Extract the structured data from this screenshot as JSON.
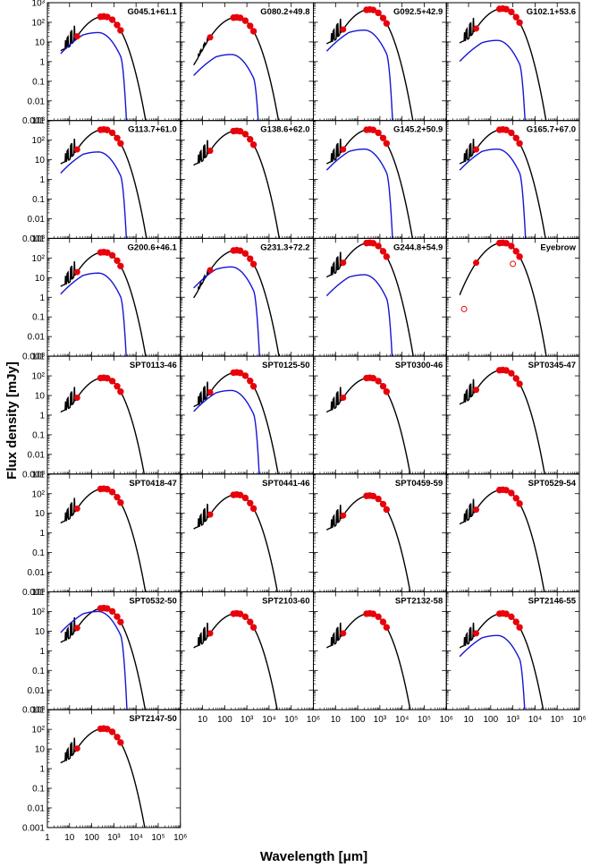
{
  "chart_data": {
    "type": "line",
    "xlabel": "Wavelength [μm]",
    "ylabel": "Flux density [mJy]",
    "x_scale": "log",
    "y_scale": "log",
    "xlim": [
      1,
      1000000
    ],
    "ylim": [
      0.001,
      1000
    ],
    "x_ticks": [
      "1",
      "10",
      "100",
      "10³",
      "10⁴",
      "10⁵",
      "10⁶"
    ],
    "y_ticks": [
      "0.001",
      "0.01",
      "0.1",
      "1",
      "10",
      "10²",
      "10³"
    ],
    "grid": false,
    "panels": [
      {
        "label": "G045.1+61.1",
        "peak": 200,
        "lensed": true,
        "blue_peak": 30,
        "hot": 1.0
      },
      {
        "label": "G080.2+49.8",
        "peak": 180,
        "lensed": true,
        "blue_peak": 2.3,
        "hot": 0.1
      },
      {
        "label": "G092.5+42.9",
        "peak": 450,
        "lensed": true,
        "blue_peak": 40,
        "hot": 1.0
      },
      {
        "label": "G102.1+53.6",
        "peak": 500,
        "lensed": true,
        "blue_peak": 12,
        "hot": 1.0
      },
      {
        "label": "G113.7+61.0",
        "peak": 350,
        "lensed": true,
        "blue_peak": 25,
        "hot": 1.0
      },
      {
        "label": "G138.6+62.0",
        "peak": 300,
        "lensed": false,
        "hot": 1.0
      },
      {
        "label": "G145.2+50.9",
        "peak": 350,
        "lensed": true,
        "blue_peak": 35,
        "hot": 1.0
      },
      {
        "label": "G165.7+67.0",
        "peak": 350,
        "lensed": true,
        "blue_peak": 35,
        "hot": 1.0
      },
      {
        "label": "G200.6+46.1",
        "peak": 200,
        "lensed": true,
        "blue_peak": 17,
        "hot": 1.0
      },
      {
        "label": "G231.3+72.2",
        "peak": 250,
        "lensed": true,
        "blue_peak": 35,
        "hot": 0.1
      },
      {
        "label": "G244.8+54.9",
        "peak": 600,
        "lensed": true,
        "blue_peak": 14,
        "hot": 1.0
      },
      {
        "label": "Eyebrow",
        "peak": 600,
        "lensed": false,
        "hot": 0.0,
        "open_circles": true
      },
      {
        "label": "SPT0113-46",
        "peak": 80,
        "lensed": false,
        "hot": 1.0
      },
      {
        "label": "SPT0125-50",
        "peak": 150,
        "lensed": true,
        "blue_peak": 18,
        "hot": 1.0
      },
      {
        "label": "SPT0300-46",
        "peak": 80,
        "lensed": false,
        "hot": 1.0
      },
      {
        "label": "SPT0345-47",
        "peak": 200,
        "lensed": false,
        "hot": 1.0
      },
      {
        "label": "SPT0418-47",
        "peak": 180,
        "lensed": false,
        "hot": 1.0
      },
      {
        "label": "SPT0441-46",
        "peak": 90,
        "lensed": false,
        "hot": 1.0
      },
      {
        "label": "SPT0459-59",
        "peak": 80,
        "lensed": false,
        "hot": 1.0
      },
      {
        "label": "SPT0529-54",
        "peak": 160,
        "lensed": false,
        "hot": 1.0
      },
      {
        "label": "SPT0532-50",
        "peak": 150,
        "lensed": true,
        "blue_peak": 100,
        "hot": 1.0
      },
      {
        "label": "SPT2103-60",
        "peak": 80,
        "lensed": false,
        "hot": 1.0
      },
      {
        "label": "SPT2132-58",
        "peak": 80,
        "lensed": false,
        "hot": 1.0
      },
      {
        "label": "SPT2146-55",
        "peak": 80,
        "lensed": true,
        "blue_peak": 6,
        "hot": 1.0
      },
      {
        "label": "SPT2147-50",
        "peak": 110,
        "lensed": false,
        "hot": 1.0
      }
    ]
  }
}
